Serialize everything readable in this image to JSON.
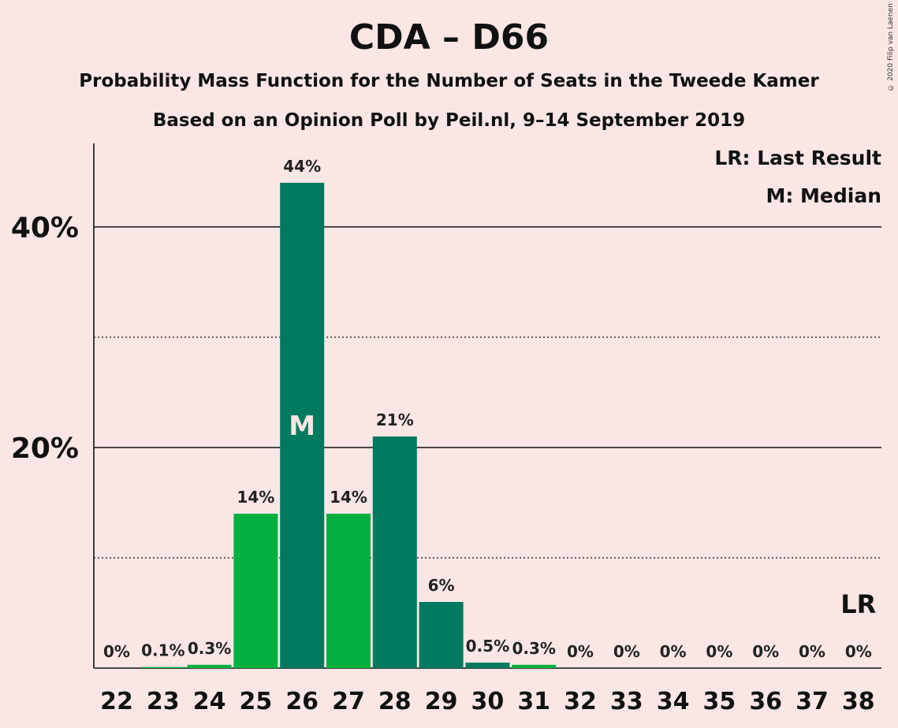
{
  "title": "CDA – D66",
  "subtitle": "Probability Mass Function for the Number of Seats in the Tweede Kamer",
  "subtitle2": "Based on an Opinion Poll by Peil.nl, 9–14 September 2019",
  "copyright": "© 2020 Filip van Laenen",
  "legend": {
    "lr": "LR: Last Result",
    "median": "M: Median"
  },
  "colors": {
    "background": "#fbe6e6",
    "bar_light": "#00b140",
    "bar_dark": "#007a5e",
    "median_text": "#fbe6e6"
  },
  "chart_data": {
    "type": "bar",
    "categories": [
      "22",
      "23",
      "24",
      "25",
      "26",
      "27",
      "28",
      "29",
      "30",
      "31",
      "32",
      "33",
      "34",
      "35",
      "36",
      "37",
      "38"
    ],
    "values": [
      0,
      0.1,
      0.3,
      14,
      44,
      14,
      21,
      6,
      0.5,
      0.3,
      0,
      0,
      0,
      0,
      0,
      0,
      0
    ],
    "labels": [
      "0%",
      "0.1%",
      "0.3%",
      "14%",
      "44%",
      "14%",
      "21%",
      "6%",
      "0.5%",
      "0.3%",
      "0%",
      "0%",
      "0%",
      "0%",
      "0%",
      "0%",
      "0%"
    ],
    "bar_colors": [
      "light",
      "light",
      "light",
      "light",
      "dark",
      "light",
      "dark",
      "dark",
      "dark",
      "light",
      "light",
      "light",
      "light",
      "light",
      "light",
      "light",
      "light"
    ],
    "ylim": [
      0,
      47.5
    ],
    "yticks": [
      {
        "value": 20,
        "label": "20%"
      },
      {
        "value": 40,
        "label": "40%"
      }
    ],
    "dotted_gridlines": [
      10,
      30
    ],
    "median_category": "26",
    "median_marker": "M",
    "last_result_category": "38",
    "last_result_marker": "LR",
    "xlabel": "",
    "ylabel": ""
  }
}
